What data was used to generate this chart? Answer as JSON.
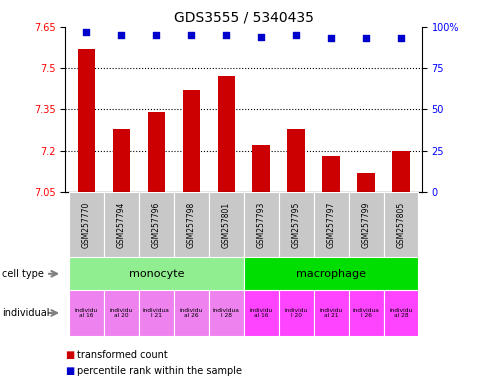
{
  "title": "GDS3555 / 5340435",
  "samples": [
    "GSM257770",
    "GSM257794",
    "GSM257796",
    "GSM257798",
    "GSM257801",
    "GSM257793",
    "GSM257795",
    "GSM257797",
    "GSM257799",
    "GSM257805"
  ],
  "bar_values": [
    7.57,
    7.28,
    7.34,
    7.42,
    7.47,
    7.22,
    7.28,
    7.18,
    7.12,
    7.2
  ],
  "percentile_values": [
    97,
    95,
    95,
    95,
    95,
    94,
    95,
    93,
    93,
    93
  ],
  "ylim_left": [
    7.05,
    7.65
  ],
  "ylim_right": [
    0,
    100
  ],
  "yticks_left": [
    7.05,
    7.2,
    7.35,
    7.5,
    7.65
  ],
  "yticks_right": [
    0,
    25,
    50,
    75,
    100
  ],
  "ytick_labels_left": [
    "7.05",
    "7.2",
    "7.35",
    "7.5",
    "7.65"
  ],
  "ytick_labels_right": [
    "0",
    "25",
    "50",
    "75",
    "100%"
  ],
  "cell_type_monocyte_color": "#90EE90",
  "cell_type_macrophage_color": "#00DD00",
  "individual_labels": [
    "individu\nal 16",
    "individu\nal 20",
    "individua\nl 21",
    "individu\nal 26",
    "individua\nl 28",
    "individu\nal 16",
    "individu\nl 20",
    "individu\nal 21",
    "individua\nl 26",
    "individu\nal 28"
  ],
  "individual_color_monocyte": "#EE82EE",
  "individual_color_macrophage": "#FF44FF",
  "bar_color": "#CC0000",
  "percentile_color": "#0000CC",
  "bar_width": 0.5,
  "background_color": "#FFFFFF",
  "sample_bg_color": "#C8C8C8",
  "row_label_celltype": "cell type",
  "row_label_individual": "individual",
  "legend_bar": "transformed count",
  "legend_pct": "percentile rank within the sample"
}
